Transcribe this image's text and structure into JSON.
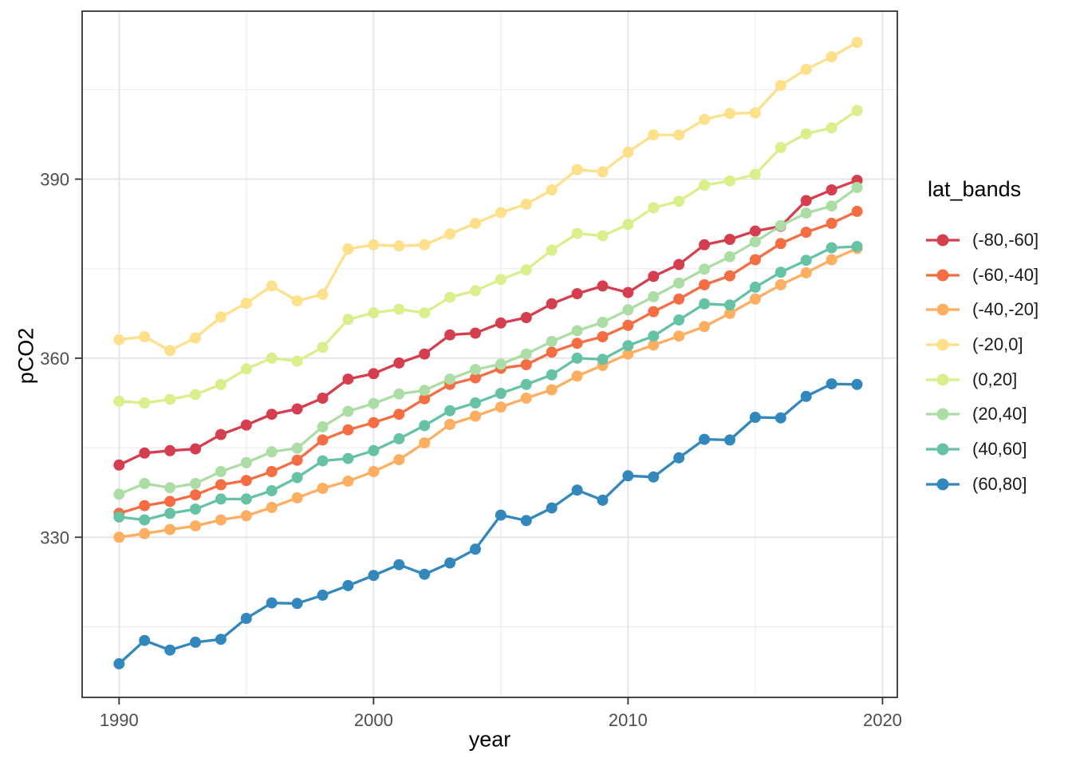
{
  "chart_data": {
    "type": "line",
    "title": "",
    "xlabel": "year",
    "ylabel": "pCO2",
    "legend_title": "lat_bands",
    "legend_position": "right",
    "grid": true,
    "x": [
      1990,
      1991,
      1992,
      1993,
      1994,
      1995,
      1996,
      1997,
      1998,
      1999,
      2000,
      2001,
      2002,
      2003,
      2004,
      2005,
      2006,
      2007,
      2008,
      2009,
      2010,
      2011,
      2012,
      2013,
      2014,
      2015,
      2016,
      2017,
      2018,
      2019
    ],
    "x_ticks": [
      1990,
      2000,
      2010,
      2020
    ],
    "x_minor_ticks": [
      1995,
      2005,
      2015
    ],
    "y_ticks": [
      330,
      360,
      390
    ],
    "y_minor_ticks": [
      315,
      345,
      375,
      405
    ],
    "xlim": [
      1988.55,
      2020.62
    ],
    "ylim": [
      302.2,
      418.4
    ],
    "series": [
      {
        "name": "(-80,-60]",
        "color": "#D53E4F",
        "values": [
          342.1,
          344.1,
          344.5,
          344.8,
          347.2,
          348.8,
          350.6,
          351.5,
          353.3,
          356.5,
          357.4,
          359.2,
          360.7,
          363.9,
          364.2,
          365.9,
          366.8,
          369.1,
          370.8,
          372.1,
          371.0,
          373.7,
          375.7,
          379.0,
          379.9,
          381.3,
          382.1,
          386.4,
          388.2,
          389.8
        ]
      },
      {
        "name": "(-60,-40]",
        "color": "#F46D43",
        "values": [
          334.0,
          335.3,
          336.0,
          337.1,
          338.8,
          339.5,
          341.0,
          342.9,
          346.3,
          348.0,
          349.2,
          350.6,
          353.2,
          355.6,
          356.7,
          358.3,
          358.9,
          361.0,
          362.5,
          363.6,
          365.5,
          367.8,
          369.9,
          372.3,
          373.8,
          376.5,
          379.2,
          381.1,
          382.6,
          384.6
        ]
      },
      {
        "name": "(-40,-20]",
        "color": "#FDAE61",
        "values": [
          330.0,
          330.6,
          331.3,
          331.9,
          332.9,
          333.6,
          335.0,
          336.6,
          338.2,
          339.4,
          341.0,
          343.0,
          345.8,
          348.9,
          350.3,
          351.8,
          353.3,
          354.7,
          357.0,
          358.8,
          360.7,
          362.2,
          363.7,
          365.3,
          367.5,
          369.9,
          372.3,
          374.3,
          376.5,
          378.4
        ]
      },
      {
        "name": "(-20,0]",
        "color": "#FEE08B",
        "values": [
          363.1,
          363.6,
          361.3,
          363.4,
          366.9,
          369.2,
          372.1,
          369.6,
          370.7,
          378.3,
          379.0,
          378.8,
          379.0,
          380.8,
          382.6,
          384.4,
          385.8,
          388.2,
          391.6,
          391.2,
          394.5,
          397.4,
          397.4,
          400.0,
          401.0,
          401.1,
          405.7,
          408.4,
          410.5,
          412.9
        ]
      },
      {
        "name": "(0,20]",
        "color": "#D9EF8B",
        "values": [
          352.8,
          352.5,
          353.1,
          353.9,
          355.6,
          358.2,
          360.0,
          359.5,
          361.8,
          366.5,
          367.6,
          368.2,
          367.6,
          370.2,
          371.3,
          373.2,
          374.8,
          378.1,
          380.9,
          380.5,
          382.4,
          385.2,
          386.3,
          389.0,
          389.7,
          390.8,
          395.3,
          397.6,
          398.6,
          401.5
        ]
      },
      {
        "name": "(20,40]",
        "color": "#ABDDA4",
        "values": [
          337.2,
          339.0,
          338.3,
          339.0,
          341.0,
          342.5,
          344.3,
          344.9,
          348.5,
          351.1,
          352.4,
          354.0,
          354.6,
          356.5,
          358.1,
          359.0,
          360.7,
          362.8,
          364.6,
          366.0,
          368.1,
          370.3,
          372.6,
          374.9,
          377.0,
          379.5,
          382.2,
          384.3,
          385.5,
          388.6
        ]
      },
      {
        "name": "(40,60]",
        "color": "#66C2A5",
        "values": [
          333.4,
          332.9,
          334.0,
          334.7,
          336.4,
          336.4,
          337.8,
          340.0,
          342.8,
          343.2,
          344.5,
          346.5,
          348.7,
          351.2,
          352.5,
          354.1,
          355.6,
          357.2,
          360.0,
          359.8,
          362.1,
          363.7,
          366.4,
          369.1,
          368.9,
          371.9,
          374.4,
          376.4,
          378.5,
          378.7
        ]
      },
      {
        "name": "(60,80]",
        "color": "#3288BD",
        "values": [
          308.8,
          312.7,
          311.1,
          312.4,
          312.9,
          316.4,
          319.0,
          318.9,
          320.3,
          321.9,
          323.6,
          325.4,
          323.8,
          325.7,
          328.0,
          333.7,
          332.8,
          334.9,
          337.9,
          336.2,
          340.3,
          340.1,
          343.3,
          346.4,
          346.3,
          350.1,
          350.0,
          353.6,
          355.7,
          355.6
        ]
      }
    ],
    "colors": {
      "panel_background": "#FFFFFF",
      "panel_border": "#333333",
      "grid_major": "#E4E4E4",
      "grid_minor": "#EDEDED",
      "tick_mark": "#333333",
      "tick_label": "#4D4D4D",
      "axis_title": "#000000"
    }
  }
}
